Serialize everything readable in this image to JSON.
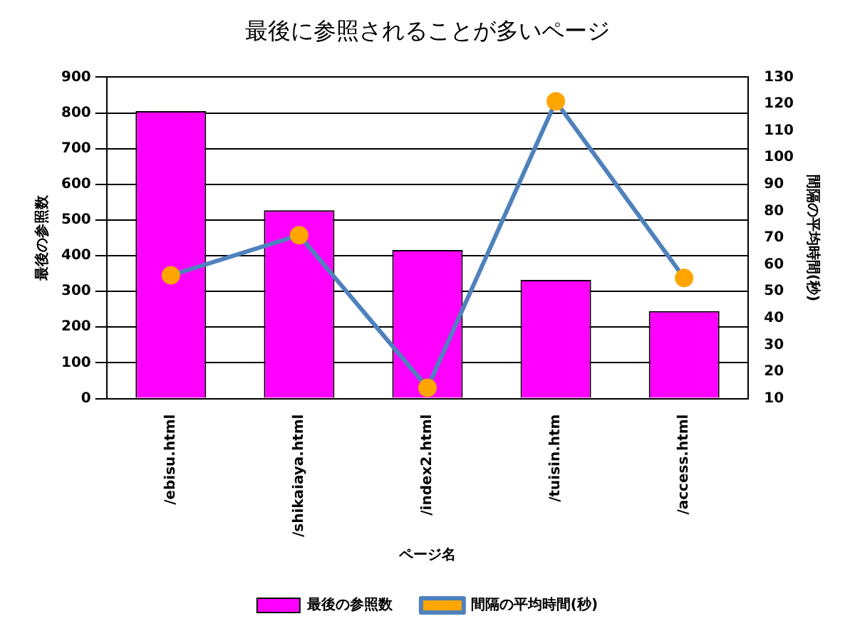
{
  "chart_data": {
    "type": "bar",
    "title": "最後に参照されることが多いページ",
    "xlabel": "ページ名",
    "ylabel": "最後の参照数",
    "y2label": "間隔の平均時間(秒)",
    "categories": [
      "/ebisu.html",
      "/shikaiaya.html",
      "/index2.html",
      "/tuisin.htm",
      "/access.html"
    ],
    "series": [
      {
        "name": "最後の参照数",
        "color": "#ff00ff",
        "values": [
          805,
          527,
          416,
          332,
          245
        ]
      },
      {
        "name": "間隔の平均時間(秒)",
        "type": "line",
        "axis": "y2",
        "color": "#4f81bd",
        "marker": "circle",
        "values": [
          56,
          71,
          14,
          121,
          55
        ]
      }
    ],
    "ylim": [
      0,
      900
    ],
    "yticks": [
      0,
      100,
      200,
      300,
      400,
      500,
      600,
      700,
      800,
      900
    ],
    "y2lim": [
      10,
      130
    ],
    "y2ticks": [
      10,
      20,
      30,
      40,
      50,
      60,
      70,
      80,
      90,
      100,
      110,
      120,
      130
    ],
    "grid": "y",
    "legend": "bottom"
  }
}
